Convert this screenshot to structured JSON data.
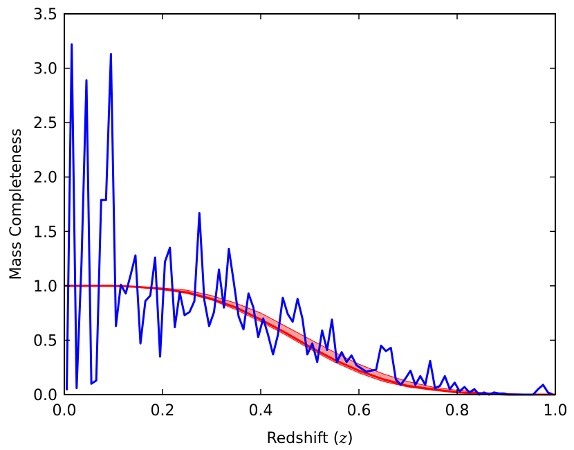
{
  "chart_data": {
    "type": "line",
    "xlabel": "Redshift (",
    "xlabel_var": "z",
    "xlabel_close": ")",
    "ylabel": "Mass Completeness",
    "xlim": [
      0.0,
      1.0
    ],
    "ylim": [
      0.0,
      3.5
    ],
    "xticks": [
      0.0,
      0.2,
      0.4,
      0.6,
      0.8,
      1.0
    ],
    "xtick_labels": [
      "0.0",
      "0.2",
      "0.4",
      "0.6",
      "0.8",
      "1.0"
    ],
    "yticks": [
      0.0,
      0.5,
      1.0,
      1.5,
      2.0,
      2.5,
      3.0,
      3.5
    ],
    "ytick_labels": [
      "0.0",
      "0.5",
      "1.0",
      "1.5",
      "2.0",
      "2.5",
      "3.0",
      "3.5"
    ],
    "grid": false,
    "legend": "none",
    "series": [
      {
        "kind": "line",
        "color": "#0000ff",
        "points": [
          [
            0.005,
            0.04
          ],
          [
            0.015,
            3.22
          ],
          [
            0.025,
            0.06
          ],
          [
            0.035,
            1.2
          ],
          [
            0.045,
            2.89
          ],
          [
            0.055,
            0.1
          ],
          [
            0.065,
            0.13
          ],
          [
            0.075,
            1.79
          ],
          [
            0.085,
            1.79
          ],
          [
            0.095,
            3.13
          ],
          [
            0.105,
            0.63
          ],
          [
            0.115,
            1.01
          ],
          [
            0.125,
            0.93
          ],
          [
            0.135,
            1.1
          ],
          [
            0.145,
            1.28
          ],
          [
            0.155,
            0.47
          ],
          [
            0.165,
            0.86
          ],
          [
            0.175,
            0.91
          ],
          [
            0.185,
            1.26
          ],
          [
            0.195,
            0.35
          ],
          [
            0.205,
            1.22
          ],
          [
            0.215,
            1.35
          ],
          [
            0.225,
            0.62
          ],
          [
            0.235,
            0.94
          ],
          [
            0.245,
            0.73
          ],
          [
            0.255,
            0.76
          ],
          [
            0.265,
            0.86
          ],
          [
            0.275,
            1.67
          ],
          [
            0.285,
            0.87
          ],
          [
            0.295,
            0.63
          ],
          [
            0.305,
            0.76
          ],
          [
            0.315,
            1.15
          ],
          [
            0.325,
            0.8
          ],
          [
            0.335,
            1.34
          ],
          [
            0.345,
            1.04
          ],
          [
            0.355,
            0.72
          ],
          [
            0.365,
            0.6
          ],
          [
            0.375,
            0.93
          ],
          [
            0.385,
            0.8
          ],
          [
            0.395,
            0.53
          ],
          [
            0.405,
            0.7
          ],
          [
            0.415,
            0.55
          ],
          [
            0.425,
            0.37
          ],
          [
            0.435,
            0.55
          ],
          [
            0.445,
            0.89
          ],
          [
            0.455,
            0.74
          ],
          [
            0.465,
            0.67
          ],
          [
            0.475,
            0.88
          ],
          [
            0.485,
            0.7
          ],
          [
            0.495,
            0.37
          ],
          [
            0.505,
            0.47
          ],
          [
            0.515,
            0.3
          ],
          [
            0.525,
            0.59
          ],
          [
            0.535,
            0.41
          ],
          [
            0.545,
            0.69
          ],
          [
            0.555,
            0.3
          ],
          [
            0.565,
            0.39
          ],
          [
            0.575,
            0.3
          ],
          [
            0.585,
            0.36
          ],
          [
            0.595,
            0.27
          ],
          [
            0.605,
            0.24
          ],
          [
            0.615,
            0.21
          ],
          [
            0.625,
            0.22
          ],
          [
            0.635,
            0.23
          ],
          [
            0.645,
            0.45
          ],
          [
            0.655,
            0.4
          ],
          [
            0.665,
            0.43
          ],
          [
            0.675,
            0.14
          ],
          [
            0.685,
            0.09
          ],
          [
            0.695,
            0.15
          ],
          [
            0.705,
            0.22
          ],
          [
            0.715,
            0.09
          ],
          [
            0.725,
            0.17
          ],
          [
            0.735,
            0.09
          ],
          [
            0.745,
            0.31
          ],
          [
            0.755,
            0.06
          ],
          [
            0.765,
            0.08
          ],
          [
            0.775,
            0.17
          ],
          [
            0.785,
            0.05
          ],
          [
            0.795,
            0.11
          ],
          [
            0.805,
            0.03
          ],
          [
            0.815,
            0.07
          ],
          [
            0.825,
            0.02
          ],
          [
            0.835,
            0.05
          ],
          [
            0.845,
            0.0
          ],
          [
            0.855,
            0.02
          ],
          [
            0.865,
            0.0
          ],
          [
            0.875,
            0.02
          ],
          [
            0.885,
            0.01
          ],
          [
            0.895,
            0.01
          ],
          [
            0.905,
            0.0
          ],
          [
            0.915,
            0.0
          ],
          [
            0.925,
            0.0
          ],
          [
            0.935,
            0.0
          ],
          [
            0.945,
            0.0
          ],
          [
            0.955,
            0.0
          ],
          [
            0.965,
            0.05
          ],
          [
            0.975,
            0.09
          ],
          [
            0.985,
            0.02
          ],
          [
            0.995,
            0.0
          ]
        ]
      },
      {
        "kind": "model_curve",
        "color": "#ff0000",
        "band_color": "#f08080",
        "points": [
          [
            0.0,
            1.0
          ],
          [
            0.05,
            1.0
          ],
          [
            0.1,
            1.0
          ],
          [
            0.15,
            0.99
          ],
          [
            0.2,
            0.97
          ],
          [
            0.25,
            0.94
          ],
          [
            0.3,
            0.88
          ],
          [
            0.35,
            0.8
          ],
          [
            0.4,
            0.69
          ],
          [
            0.45,
            0.57
          ],
          [
            0.5,
            0.44
          ],
          [
            0.55,
            0.32
          ],
          [
            0.6,
            0.22
          ],
          [
            0.65,
            0.14
          ],
          [
            0.7,
            0.08
          ],
          [
            0.75,
            0.05
          ],
          [
            0.8,
            0.02
          ],
          [
            0.85,
            0.01
          ],
          [
            0.9,
            0.0
          ],
          [
            1.0,
            0.0
          ]
        ],
        "band_upper": [
          [
            0.0,
            1.0
          ],
          [
            0.05,
            1.0
          ],
          [
            0.1,
            1.0
          ],
          [
            0.15,
            0.995
          ],
          [
            0.2,
            0.98
          ],
          [
            0.25,
            0.96
          ],
          [
            0.3,
            0.91
          ],
          [
            0.35,
            0.84
          ],
          [
            0.4,
            0.75
          ],
          [
            0.45,
            0.63
          ],
          [
            0.5,
            0.51
          ],
          [
            0.55,
            0.39
          ],
          [
            0.6,
            0.28
          ],
          [
            0.65,
            0.19
          ],
          [
            0.7,
            0.12
          ],
          [
            0.75,
            0.07
          ],
          [
            0.8,
            0.04
          ],
          [
            0.85,
            0.02
          ],
          [
            0.9,
            0.01
          ],
          [
            1.0,
            0.0
          ]
        ],
        "band_lower": [
          [
            0.0,
            1.0
          ],
          [
            0.05,
            1.0
          ],
          [
            0.1,
            0.995
          ],
          [
            0.15,
            0.985
          ],
          [
            0.2,
            0.965
          ],
          [
            0.25,
            0.93
          ],
          [
            0.3,
            0.87
          ],
          [
            0.35,
            0.78
          ],
          [
            0.4,
            0.67
          ],
          [
            0.45,
            0.55
          ],
          [
            0.5,
            0.42
          ],
          [
            0.55,
            0.3
          ],
          [
            0.6,
            0.2
          ],
          [
            0.65,
            0.12
          ],
          [
            0.7,
            0.07
          ],
          [
            0.75,
            0.04
          ],
          [
            0.8,
            0.015
          ],
          [
            0.85,
            0.005
          ],
          [
            0.9,
            0.0
          ],
          [
            1.0,
            0.0
          ]
        ]
      }
    ]
  }
}
